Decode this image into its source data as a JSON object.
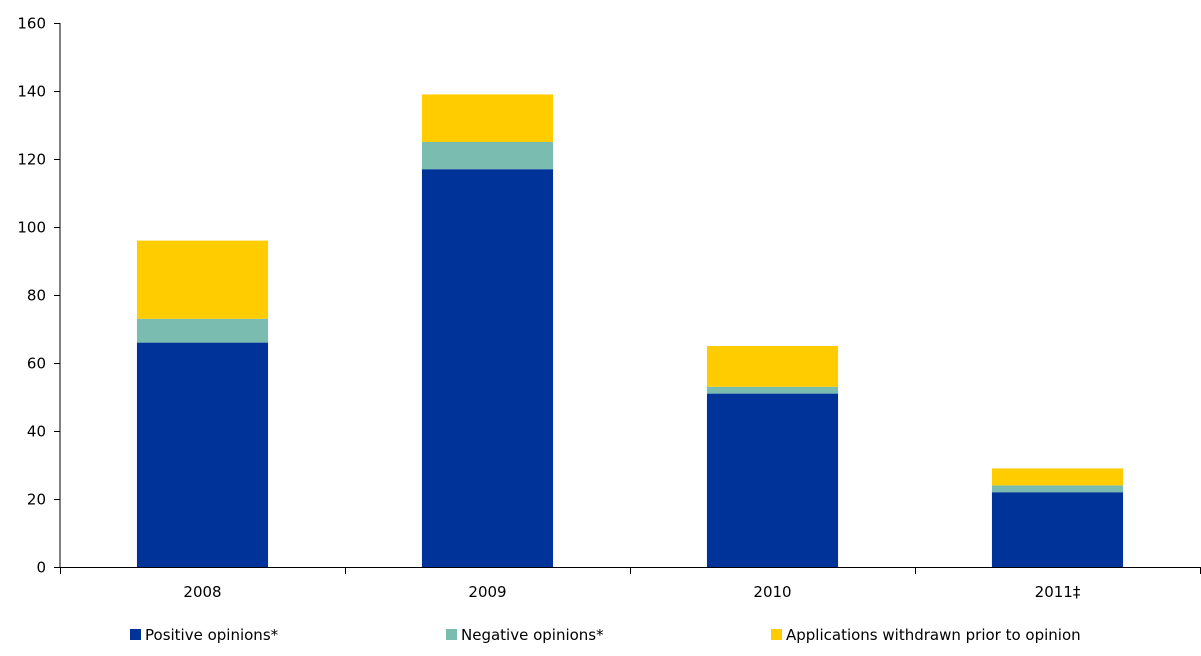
{
  "chart_data": {
    "type": "bar",
    "stacked": true,
    "categories": [
      "2008",
      "2009",
      "2010",
      "2011‡"
    ],
    "series": [
      {
        "name": "Positive opinions*",
        "values": [
          66,
          117,
          51,
          22
        ],
        "color": "#003399"
      },
      {
        "name": "Negative opinions*",
        "values": [
          7,
          8,
          2,
          2
        ],
        "color": "#7BBCB0"
      },
      {
        "name": "Applications withdrawn prior to opinion",
        "values": [
          23,
          14,
          12,
          5
        ],
        "color": "#FFCC00"
      }
    ],
    "ylim": [
      0,
      160
    ],
    "yticks": [
      "0",
      "20",
      "40",
      "60",
      "80",
      "100",
      "120",
      "140",
      "160"
    ],
    "grid": false,
    "legend_position": "bottom"
  }
}
